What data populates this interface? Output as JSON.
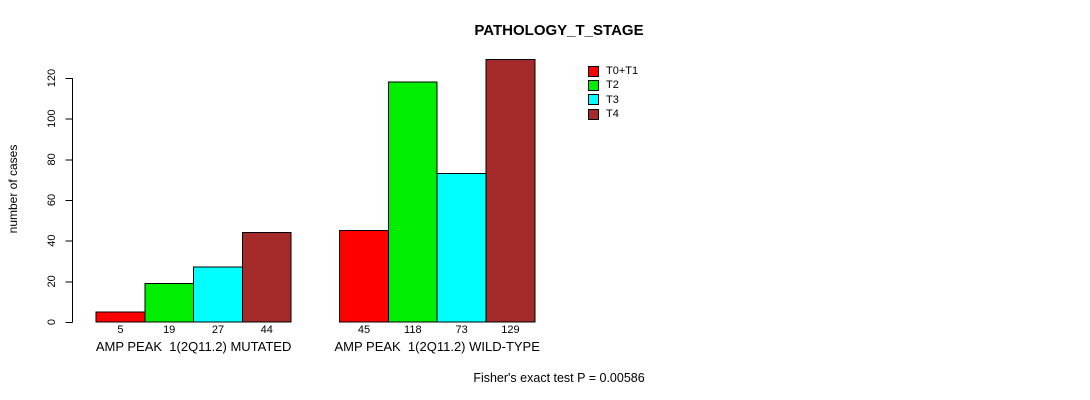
{
  "chart_data": {
    "type": "bar",
    "title": "PATHOLOGY_T_STAGE",
    "ylabel": "number of cases",
    "xlabel": "",
    "ylim": [
      0,
      129
    ],
    "yticks": [
      0,
      20,
      40,
      60,
      80,
      100,
      120
    ],
    "grid": false,
    "legend_position": "top-right",
    "categories": [
      "AMP PEAK  1(2Q11.2) MUTATED",
      "AMP PEAK  1(2Q11.2) WILD-TYPE"
    ],
    "series": [
      {
        "name": "T0+T1",
        "color": "#FF0000",
        "values": [
          5,
          45
        ]
      },
      {
        "name": "T2",
        "color": "#00EE00",
        "values": [
          19,
          118
        ]
      },
      {
        "name": "T3",
        "color": "#00FFFF",
        "values": [
          27,
          73
        ]
      },
      {
        "name": "T4",
        "color": "#A52A2A",
        "values": [
          44,
          129
        ]
      }
    ],
    "bar_value_labels": [
      [
        5,
        19,
        27,
        44
      ],
      [
        45,
        118,
        73,
        129
      ]
    ],
    "footnote": "Fisher's exact test P = 0.00586",
    "axis_color": "#000000",
    "text_color": "#000000",
    "background_color": "#FFFFFF"
  }
}
